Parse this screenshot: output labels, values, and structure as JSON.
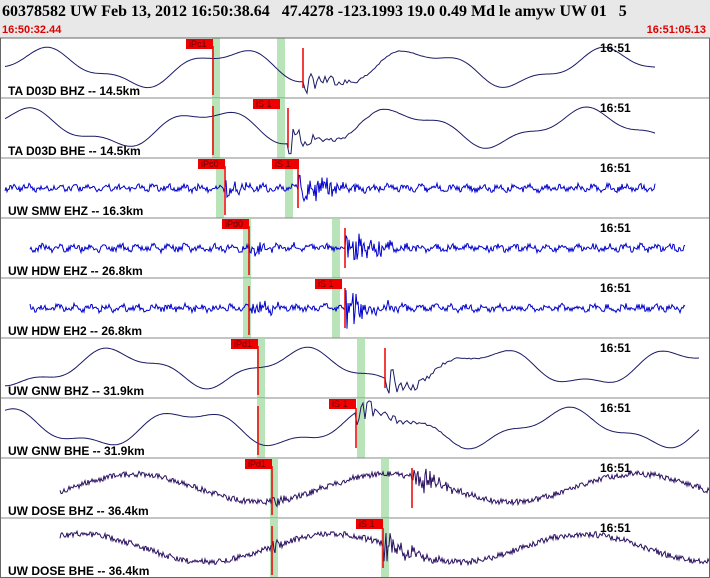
{
  "header": {
    "title": "60378582 UW Feb 13, 2012 16:50:38.64   47.4278 -123.1993 19.0 0.49 Md le amyw UW 01   5",
    "start_time": "16:50:32.44",
    "end_time": "16:51:05.13"
  },
  "panels": [
    {
      "label": "TA D03D BHZ -- 14.5km",
      "time": "16:51",
      "picks": [
        "iPc1"
      ]
    },
    {
      "label": "TA D03D BHE -- 14.5km",
      "time": "16:51",
      "picks": [
        "iS 1"
      ]
    },
    {
      "label": "UW SMW EHZ -- 16.3km",
      "time": "16:51",
      "picks": [
        "iPc0",
        "iS 1"
      ]
    },
    {
      "label": "UW HDW EHZ -- 26.8km",
      "time": "16:51",
      "picks": [
        "iPd0"
      ]
    },
    {
      "label": "UW HDW EH2 -- 26.8km",
      "time": "16:51",
      "picks": [
        "iS 1"
      ]
    },
    {
      "label": "UW GNW BHZ -- 31.9km",
      "time": "16:51",
      "picks": [
        "iPd1"
      ]
    },
    {
      "label": "UW GNW BHE -- 31.9km",
      "time": "16:51",
      "picks": [
        "iS 1"
      ]
    },
    {
      "label": "UW DOSE BHZ -- 36.4km",
      "time": "16:51",
      "picks": [
        "iPd1"
      ]
    },
    {
      "label": "UW DOSE BHE -- 36.4km",
      "time": "16:51",
      "picks": [
        "iS 1"
      ]
    }
  ]
}
